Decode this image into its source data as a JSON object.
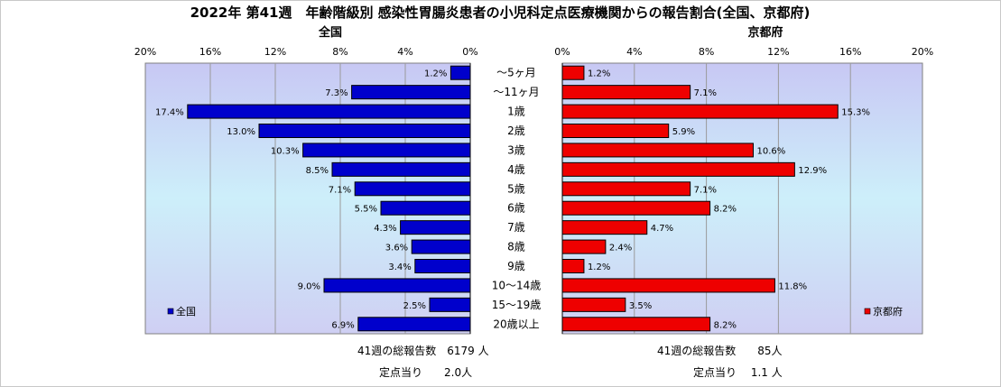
{
  "chart_data": {
    "type": "bar",
    "title": "2022年 第41週　年齢階級別 感染性胃腸炎患者の小児科定点医療機関からの報告割合(全国、京都府)",
    "categories": [
      "～5ヶ月",
      "～11ヶ月",
      "1歳",
      "2歳",
      "3歳",
      "4歳",
      "5歳",
      "6歳",
      "7歳",
      "8歳",
      "9歳",
      "10～14歳",
      "15～19歳",
      "20歳以上"
    ],
    "xlim": [
      0,
      20
    ],
    "ticks": [
      "0%",
      "4%",
      "8%",
      "12%",
      "16%",
      "20%"
    ],
    "grid": true,
    "panels": [
      {
        "name": "全国",
        "direction": "left",
        "color": "#0000cc",
        "legend": "全国",
        "legend_position": "bottom-left",
        "values": [
          1.2,
          7.3,
          17.4,
          13.0,
          10.3,
          8.5,
          7.1,
          5.5,
          4.3,
          3.6,
          3.4,
          9.0,
          2.5,
          6.9
        ],
        "labels": [
          "1.2%",
          "7.3%",
          "17.4%",
          "13.0%",
          "10.3%",
          "8.5%",
          "7.1%",
          "5.5%",
          "4.3%",
          "3.6%",
          "3.4%",
          "9.0%",
          "2.5%",
          "6.9%"
        ]
      },
      {
        "name": "京都府",
        "direction": "right",
        "color": "#ee0000",
        "legend": "京都府",
        "legend_position": "bottom-right",
        "values": [
          1.2,
          7.1,
          15.3,
          5.9,
          10.6,
          12.9,
          7.1,
          8.2,
          4.7,
          2.4,
          1.2,
          11.8,
          3.5,
          8.2
        ],
        "labels": [
          "1.2%",
          "7.1%",
          "15.3%",
          "5.9%",
          "10.6%",
          "12.9%",
          "7.1%",
          "8.2%",
          "4.7%",
          "2.4%",
          "1.2%",
          "11.8%",
          "3.5%",
          "8.2%"
        ]
      }
    ]
  },
  "footer": {
    "national_total": "41週の総報告数　6179 人",
    "national_per": "定点当り　　2.0人",
    "kyoto_total": "41週の総報告数　　85人",
    "kyoto_per": "定点当り　 1.1 人"
  }
}
